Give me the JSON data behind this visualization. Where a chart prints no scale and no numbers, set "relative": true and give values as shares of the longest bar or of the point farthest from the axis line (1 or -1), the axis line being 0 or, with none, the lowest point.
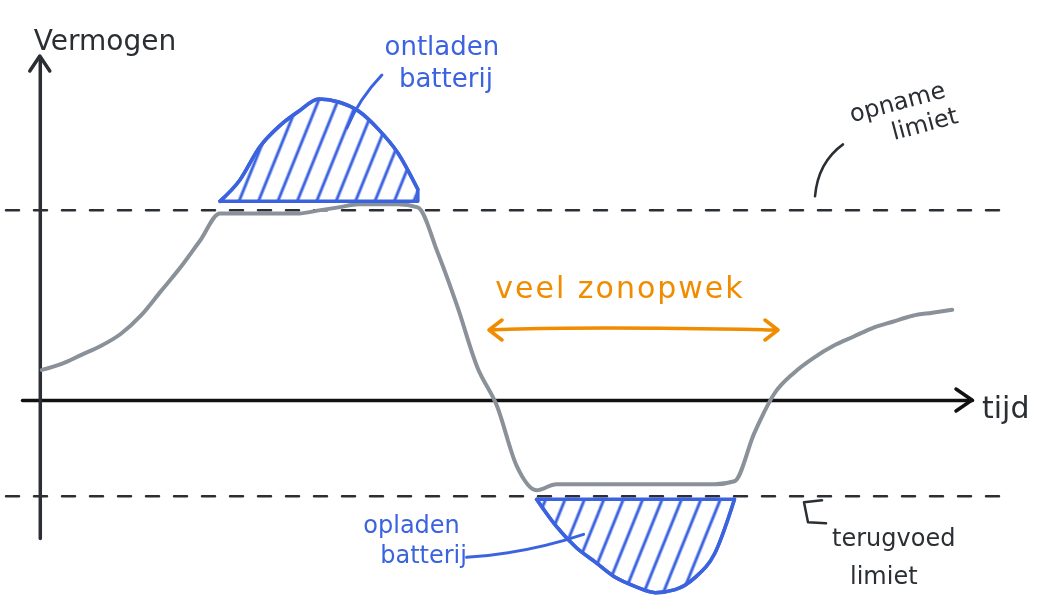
{
  "chart_data": {
    "type": "line",
    "relative": true,
    "ylabel": "Vermogen",
    "xlabel": "tijd",
    "categories": [
      null,
      null,
      null,
      null,
      null,
      null,
      null,
      null,
      null,
      null,
      null,
      null,
      null,
      null,
      null,
      null,
      null,
      null,
      null,
      null,
      null,
      null,
      null,
      null,
      null,
      null,
      null,
      null,
      null,
      null,
      null,
      null,
      null,
      null,
      null,
      null,
      null,
      null,
      null,
      null,
      null,
      null,
      null,
      null,
      null,
      null,
      null
    ],
    "series": [
      {
        "color": "#8a9199",
        "values": [
          0.1,
          0.12,
          0.15,
          0.18,
          0.22,
          0.28,
          0.36,
          0.44,
          0.53,
          0.62,
          0.62,
          0.62,
          0.62,
          0.62,
          0.63,
          0.64,
          0.65,
          0.65,
          0.65,
          0.64,
          0.49,
          0.31,
          0.11,
          -0.02,
          -0.22,
          -0.3,
          -0.28,
          -0.28,
          -0.28,
          -0.28,
          -0.28,
          -0.28,
          -0.28,
          -0.28,
          -0.28,
          -0.27,
          -0.11,
          0.02,
          0.09,
          0.14,
          0.18,
          0.21,
          0.24,
          0.26,
          0.28,
          0.29,
          0.3
        ]
      },
      {
        "name": "ontladen batterij",
        "color": "#3b63e0",
        "values": [
          null,
          null,
          null,
          null,
          null,
          null,
          null,
          null,
          null,
          0.66,
          0.73,
          0.84,
          0.91,
          0.96,
          1.0,
          0.99,
          0.96,
          0.9,
          0.82,
          0.7,
          null,
          null,
          null,
          null,
          null,
          null,
          null,
          null,
          null,
          null,
          null,
          null,
          null,
          null,
          null,
          null,
          null,
          null,
          null,
          null,
          null,
          null,
          null,
          null,
          null,
          null,
          null
        ],
        "lower": [
          null,
          null,
          null,
          null,
          null,
          null,
          null,
          null,
          null,
          0.66,
          0.66,
          0.66,
          0.66,
          0.66,
          0.66,
          0.66,
          0.66,
          0.66,
          0.66,
          0.66,
          null,
          null,
          null,
          null,
          null,
          null,
          null,
          null,
          null,
          null,
          null,
          null,
          null,
          null,
          null,
          null,
          null,
          null,
          null,
          null,
          null,
          null,
          null,
          null,
          null,
          null,
          null
        ],
        "upper": [
          null,
          null,
          null,
          null,
          null,
          null,
          null,
          null,
          null,
          0.66,
          0.73,
          0.84,
          0.91,
          0.96,
          1.0,
          0.99,
          0.96,
          0.9,
          0.82,
          0.7,
          null,
          null,
          null,
          null,
          null,
          null,
          null,
          null,
          null,
          null,
          null,
          null,
          null,
          null,
          null,
          null,
          null,
          null,
          null,
          null,
          null,
          null,
          null,
          null,
          null,
          null,
          null
        ]
      },
      {
        "name": "opladen batterij",
        "color": "#3b63e0",
        "values": [
          null,
          null,
          null,
          null,
          null,
          null,
          null,
          null,
          null,
          null,
          null,
          null,
          null,
          null,
          null,
          null,
          null,
          null,
          null,
          null,
          null,
          null,
          null,
          null,
          null,
          -0.33,
          -0.42,
          -0.49,
          -0.54,
          -0.59,
          -0.62,
          -0.64,
          -0.63,
          -0.59,
          -0.51,
          -0.33,
          null,
          null,
          null,
          null,
          null,
          null,
          null,
          null,
          null,
          null,
          null
        ],
        "lower": [
          null,
          null,
          null,
          null,
          null,
          null,
          null,
          null,
          null,
          null,
          null,
          null,
          null,
          null,
          null,
          null,
          null,
          null,
          null,
          null,
          null,
          null,
          null,
          null,
          null,
          -0.33,
          -0.42,
          -0.49,
          -0.54,
          -0.59,
          -0.62,
          -0.64,
          -0.63,
          -0.59,
          -0.51,
          -0.33,
          null,
          null,
          null,
          null,
          null,
          null,
          null,
          null,
          null,
          null,
          null
        ],
        "upper": [
          null,
          null,
          null,
          null,
          null,
          null,
          null,
          null,
          null,
          null,
          null,
          null,
          null,
          null,
          null,
          null,
          null,
          null,
          null,
          null,
          null,
          null,
          null,
          null,
          null,
          -0.33,
          -0.33,
          -0.33,
          -0.33,
          -0.33,
          -0.33,
          -0.33,
          -0.33,
          -0.33,
          -0.33,
          -0.33,
          null,
          null,
          null,
          null,
          null,
          null,
          null,
          null,
          null,
          null,
          null
        ]
      }
    ],
    "ref_lines": [
      {
        "axis": "y",
        "value": 0.63,
        "label": "opname limiet",
        "line_style": "dashed",
        "color": "#2b2f33"
      },
      {
        "axis": "y",
        "value": -0.32,
        "label": "terugvoed limiet",
        "line_style": "dashed",
        "color": "#2b2f33"
      }
    ],
    "annotations": [
      "veel zonopwek"
    ]
  }
}
